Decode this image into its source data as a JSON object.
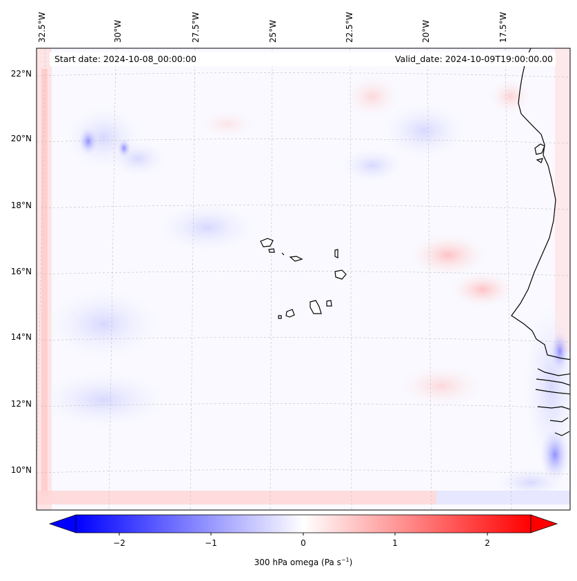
{
  "map": {
    "start_date": "Start date: 2024-10-08_00:00:00",
    "valid_date": "Valid_date: 2024-10-09T19:00:00.00",
    "lon_labels": [
      "32.5°W",
      "30°W",
      "27.5°W",
      "25°W",
      "22.5°W",
      "20°W",
      "17.5°W"
    ],
    "lat_labels": [
      "22°N",
      "20°N",
      "18°N",
      "16°N",
      "14°N",
      "12°N",
      "10°N"
    ],
    "colors": {
      "negative": "#0000ff",
      "positive": "#ff0000",
      "neutral": "#ffffff",
      "coastline": "#000000",
      "gridline": "#bfbfbf"
    }
  },
  "colorbar": {
    "label": "300 hPa omega (Pa s",
    "label_sup": "−1",
    "label_end": ")",
    "tick_labels": [
      "−2",
      "−1",
      "0",
      "1",
      "2"
    ],
    "min": -2.5,
    "max": 2.5,
    "extend": "both"
  }
}
